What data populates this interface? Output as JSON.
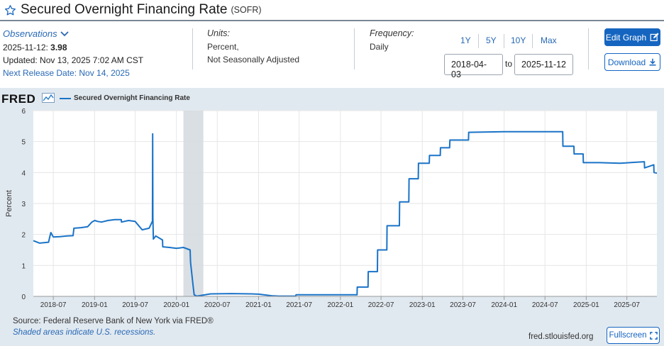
{
  "header": {
    "title": "Secured Overnight Financing Rate",
    "series_id": "(SOFR)"
  },
  "observations": {
    "toggle_label": "Observations",
    "date": "2025-11-12:",
    "value": "3.98",
    "updated": "Updated: Nov 13, 2025 7:02 AM CST",
    "next_release": "Next Release Date: Nov 14, 2025"
  },
  "units": {
    "label": "Units:",
    "line1": "Percent,",
    "line2": "Not Seasonally Adjusted"
  },
  "frequency": {
    "label": "Frequency:",
    "value": "Daily"
  },
  "ranges": {
    "r1": "1Y",
    "r5": "5Y",
    "r10": "10Y",
    "max": "Max",
    "start": "2018-04-03",
    "to": "to",
    "end": "2025-11-12"
  },
  "buttons": {
    "edit": "Edit Graph",
    "download": "Download",
    "fullscreen": "Fullscreen"
  },
  "footer": {
    "source": "Source: Federal Reserve Bank of New York via FRED®",
    "shaded": "Shaded areas indicate U.S. recessions.",
    "url": "fred.stlouisfed.org"
  },
  "colors": {
    "line": "#1a73c8",
    "recession": "#d3d9df",
    "accent": "#1565c0"
  },
  "chart_data": {
    "type": "line",
    "logo": "FRED",
    "legend": "Secured Overnight Financing Rate",
    "ylabel": "Percent",
    "ylim": [
      0,
      6
    ],
    "yticks": [
      0,
      1,
      2,
      3,
      4,
      5,
      6
    ],
    "xlim": [
      "2018-04-03",
      "2025-11-12"
    ],
    "xticks": [
      "2018-07",
      "2019-01",
      "2019-07",
      "2020-01",
      "2020-07",
      "2021-01",
      "2021-07",
      "2022-01",
      "2022-07",
      "2023-01",
      "2023-07",
      "2024-01",
      "2024-07",
      "2025-01",
      "2025-07"
    ],
    "recessions": [
      [
        "2020-02-01",
        "2020-04-30"
      ]
    ],
    "series": [
      {
        "name": "Secured Overnight Financing Rate",
        "points": [
          [
            "2018-04-03",
            1.8
          ],
          [
            "2018-05-01",
            1.72
          ],
          [
            "2018-06-10",
            1.75
          ],
          [
            "2018-06-15",
            1.92
          ],
          [
            "2018-06-20",
            2.06
          ],
          [
            "2018-07-01",
            1.92
          ],
          [
            "2018-08-01",
            1.93
          ],
          [
            "2018-09-01",
            1.95
          ],
          [
            "2018-09-27",
            1.96
          ],
          [
            "2018-10-01",
            2.2
          ],
          [
            "2018-11-01",
            2.22
          ],
          [
            "2018-12-01",
            2.25
          ],
          [
            "2018-12-20",
            2.4
          ],
          [
            "2019-01-02",
            2.45
          ],
          [
            "2019-01-15",
            2.42
          ],
          [
            "2019-02-01",
            2.4
          ],
          [
            "2019-03-01",
            2.45
          ],
          [
            "2019-04-01",
            2.48
          ],
          [
            "2019-04-30",
            2.48
          ],
          [
            "2019-05-01",
            2.4
          ],
          [
            "2019-06-01",
            2.45
          ],
          [
            "2019-07-01",
            2.42
          ],
          [
            "2019-08-01",
            2.15
          ],
          [
            "2019-09-01",
            2.2
          ],
          [
            "2019-09-16",
            2.43
          ],
          [
            "2019-09-17",
            5.25
          ],
          [
            "2019-09-18",
            2.55
          ],
          [
            "2019-09-20",
            1.85
          ],
          [
            "2019-10-01",
            1.95
          ],
          [
            "2019-10-31",
            1.82
          ],
          [
            "2019-11-01",
            1.6
          ],
          [
            "2019-12-01",
            1.58
          ],
          [
            "2020-01-01",
            1.55
          ],
          [
            "2020-02-01",
            1.58
          ],
          [
            "2020-03-02",
            1.5
          ],
          [
            "2020-03-04",
            1.1
          ],
          [
            "2020-03-16",
            0.3
          ],
          [
            "2020-03-20",
            0.05
          ],
          [
            "2020-04-01",
            0.01
          ],
          [
            "2020-06-01",
            0.08
          ],
          [
            "2020-09-01",
            0.09
          ],
          [
            "2020-12-01",
            0.08
          ],
          [
            "2021-01-01",
            0.07
          ],
          [
            "2021-03-01",
            0.02
          ],
          [
            "2021-04-01",
            0.01
          ],
          [
            "2021-06-16",
            0.01
          ],
          [
            "2021-06-17",
            0.05
          ],
          [
            "2022-01-01",
            0.05
          ],
          [
            "2022-03-16",
            0.05
          ],
          [
            "2022-03-17",
            0.3
          ],
          [
            "2022-05-04",
            0.3
          ],
          [
            "2022-05-05",
            0.8
          ],
          [
            "2022-06-15",
            0.8
          ],
          [
            "2022-06-16",
            1.5
          ],
          [
            "2022-07-27",
            1.5
          ],
          [
            "2022-07-28",
            2.28
          ],
          [
            "2022-09-21",
            2.28
          ],
          [
            "2022-09-22",
            3.05
          ],
          [
            "2022-11-02",
            3.05
          ],
          [
            "2022-11-03",
            3.8
          ],
          [
            "2022-12-14",
            3.8
          ],
          [
            "2022-12-15",
            4.3
          ],
          [
            "2023-02-01",
            4.3
          ],
          [
            "2023-02-02",
            4.55
          ],
          [
            "2023-03-22",
            4.55
          ],
          [
            "2023-03-23",
            4.8
          ],
          [
            "2023-05-03",
            4.8
          ],
          [
            "2023-05-04",
            5.05
          ],
          [
            "2023-07-26",
            5.05
          ],
          [
            "2023-07-27",
            5.3
          ],
          [
            "2024-01-01",
            5.32
          ],
          [
            "2024-06-01",
            5.32
          ],
          [
            "2024-09-18",
            5.32
          ],
          [
            "2024-09-19",
            4.85
          ],
          [
            "2024-11-07",
            4.85
          ],
          [
            "2024-11-08",
            4.6
          ],
          [
            "2024-12-18",
            4.6
          ],
          [
            "2024-12-19",
            4.32
          ],
          [
            "2025-03-01",
            4.32
          ],
          [
            "2025-06-01",
            4.3
          ],
          [
            "2025-09-17",
            4.35
          ],
          [
            "2025-09-18",
            4.15
          ],
          [
            "2025-10-29",
            4.25
          ],
          [
            "2025-10-30",
            4.0
          ],
          [
            "2025-11-12",
            3.98
          ]
        ]
      }
    ]
  }
}
